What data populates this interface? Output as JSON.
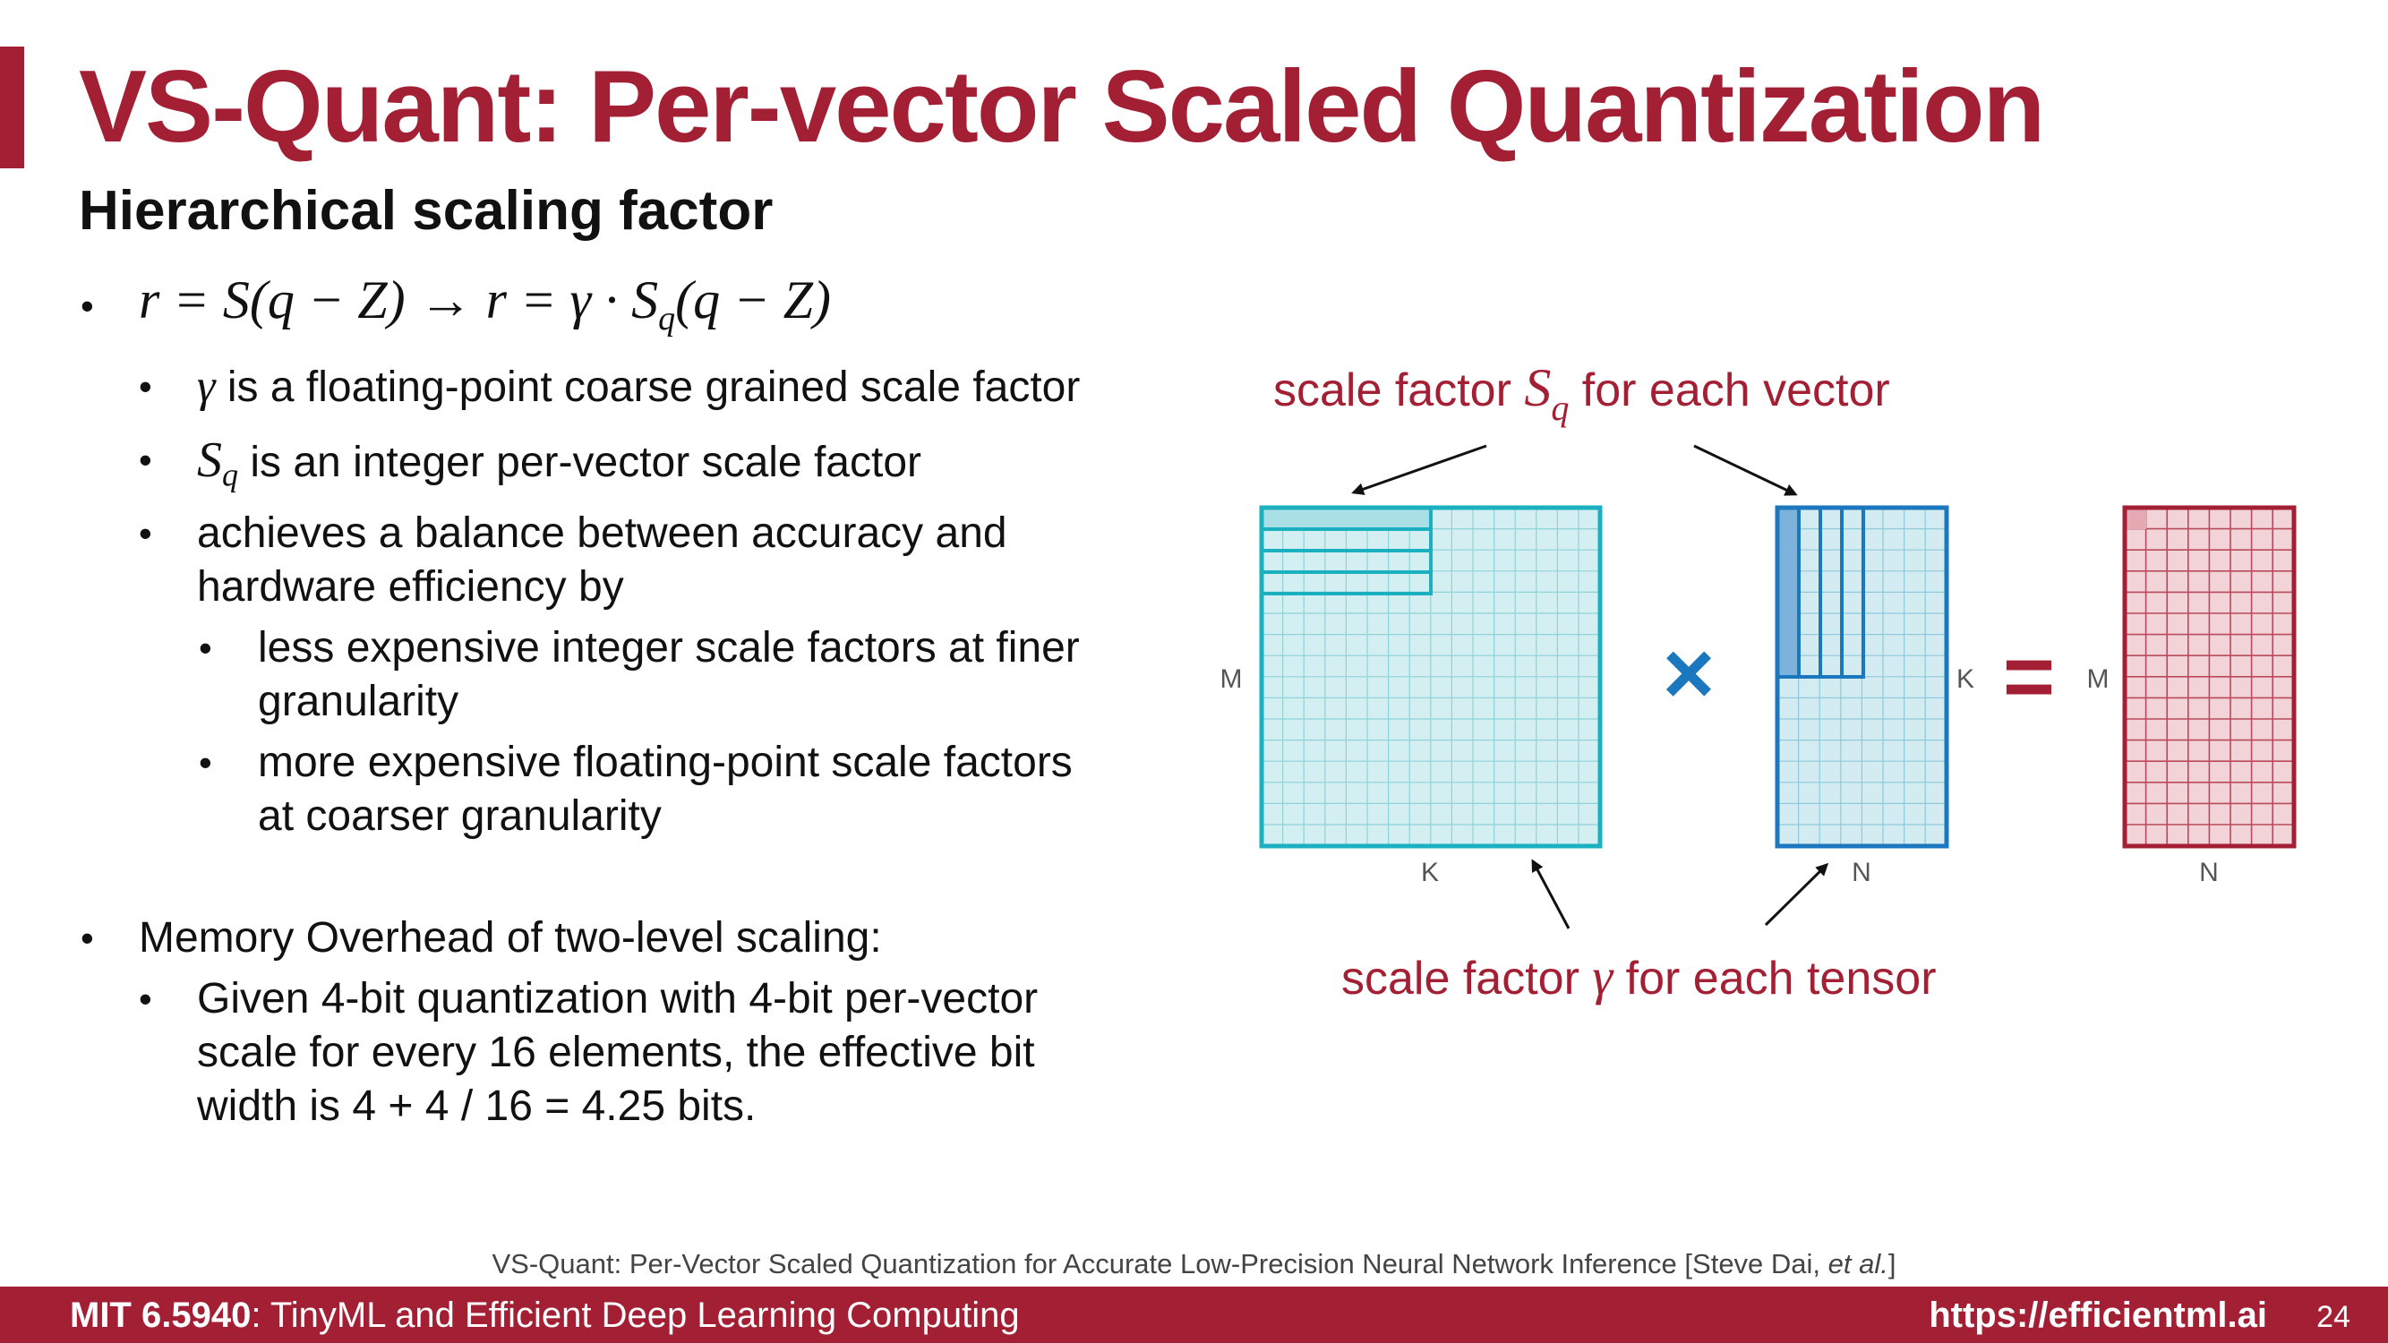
{
  "title": "VS-Quant: Per-vector Scaled Quantization",
  "subtitle": "Hierarchical scaling factor",
  "bullets": {
    "formula": "r = S(q − Z) → r = γ · S",
    "formula_sub": "q",
    "formula_tail": "(q − Z)",
    "gamma_symbol": "γ",
    "gamma_text": " is a floating-point coarse grained scale factor",
    "sq_symbol": "S",
    "sq_sub": "q",
    "sq_text": " is an integer per-vector scale factor",
    "balance_line1": "achieves a balance between accuracy and",
    "balance_line2": "hardware efficiency by",
    "finer_line1": "less expensive integer scale factors at finer",
    "finer_line2": "granularity",
    "coarser_line1": "more expensive floating-point scale factors",
    "coarser_line2": "at coarser granularity",
    "memory": "Memory Overhead of two-level scaling:",
    "given_line1": "Given 4-bit quantization with 4-bit per-vector",
    "given_line2": "scale for every 16 elements, the effective bit",
    "given_line3": "width is 4 + 4 / 16 = 4.25 bits."
  },
  "diagram": {
    "vector_label_pre": "scale factor ",
    "vector_label_sym": "S",
    "vector_label_sub": "q",
    "vector_label_post": " for each vector",
    "tensor_label_pre": "scale factor ",
    "tensor_label_sym": "γ",
    "tensor_label_post": " for each tensor",
    "times_symbol": "×",
    "equals_symbol": "=",
    "matrix_a_rows": "M",
    "matrix_a_cols": "K",
    "matrix_b_rows": "K",
    "matrix_b_cols": "N",
    "matrix_c_rows": "M",
    "matrix_c_cols": "N",
    "colors": {
      "matrix_a": "#1ab0c0",
      "matrix_a_fill": "#d3eff1",
      "matrix_b": "#1c78be",
      "matrix_b_fill": "#d3ecf1",
      "matrix_c": "#a31f34",
      "matrix_c_fill": "#f2d3d8",
      "times": "#1c78be",
      "equals": "#a31f34"
    }
  },
  "reference": {
    "text": "VS-Quant: Per-Vector Scaled Quantization for Accurate Low-Precision Neural Network Inference [Steve Dai, ",
    "italic": "et al.",
    "close": "]"
  },
  "footer": {
    "course_code": "MIT 6.5940",
    "course_name": ": TinyML and Efficient Deep Learning Computing",
    "url": "https://efficientml.ai",
    "page": "24"
  },
  "brand_color": "#a31f34"
}
